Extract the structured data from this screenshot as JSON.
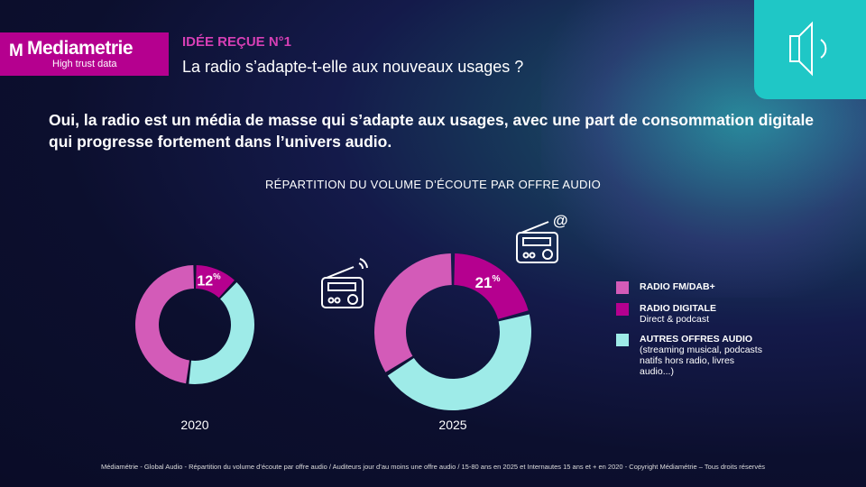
{
  "brand": {
    "name": "Mediametrie",
    "tagline": "High trust data"
  },
  "header": {
    "kicker": "IDÉE REÇUE N°1",
    "question": "La radio s’adapte-t-elle aux nouveaux usages ?"
  },
  "lead": "Oui, la radio est un média de masse qui s’adapte aux usages, avec une part de consommation digitale qui progresse fortement dans l’univers audio.",
  "chart_data": {
    "type": "pie",
    "title": "RÉPARTITION DU VOLUME D’ÉCOUTE PAR OFFRE AUDIO",
    "series_names": [
      "RADIO DIGITALE",
      "AUTRES OFFRES AUDIO",
      "RADIO FM/DAB+"
    ],
    "colors": [
      "#b5008f",
      "#9eebe8",
      "#d35bb8"
    ],
    "charts": [
      {
        "year": "2020",
        "values": [
          12,
          40,
          48
        ],
        "label": "12",
        "label_suffix": "%"
      },
      {
        "year": "2025",
        "values": [
          21,
          45,
          34
        ],
        "label": "21",
        "label_suffix": "%"
      }
    ],
    "legend": [
      {
        "title": "RADIO FM/DAB+",
        "sub": "",
        "color": "#d35bb8"
      },
      {
        "title": "RADIO DIGITALE",
        "sub": "Direct & podcast",
        "color": "#b5008f"
      },
      {
        "title": "AUTRES OFFRES AUDIO",
        "sub": "(streaming musical, podcasts natifs hors radio, livres audio...)",
        "color": "#9eebe8"
      }
    ]
  },
  "footer": "Médiamétrie - Global Audio - Répartition du volume d’écoute par offre audio / Auditeurs jour d’au moins une offre audio / 15-80 ans en 2025 et Internautes 15 ans et + en 2020 - Copyright Médiamétrie – Tous droits réservés"
}
